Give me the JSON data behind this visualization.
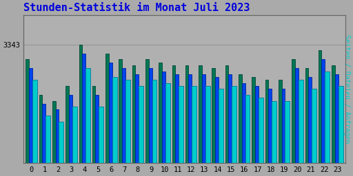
{
  "title": "Stunden-Statistik im Monat Juli 2023",
  "title_color": "#0000dd",
  "ylabel_right": "Seiten / Dateien / Anfragen",
  "ylabel_right_color": "#00cccc",
  "hours": [
    0,
    1,
    2,
    3,
    4,
    5,
    6,
    7,
    8,
    9,
    10,
    11,
    12,
    13,
    14,
    15,
    16,
    17,
    18,
    19,
    20,
    21,
    22,
    23
  ],
  "seiten_vals": [
    95,
    83,
    81,
    86,
    100,
    86,
    97,
    95,
    93,
    95,
    94,
    93,
    93,
    93,
    92,
    93,
    90,
    89,
    88,
    88,
    95,
    92,
    98,
    93
  ],
  "dateien_vals": [
    92,
    80,
    78,
    83,
    97,
    83,
    94,
    92,
    90,
    92,
    91,
    90,
    90,
    90,
    89,
    90,
    87,
    86,
    85,
    85,
    92,
    89,
    95,
    90
  ],
  "anfragen_vals": [
    88,
    76,
    74,
    79,
    92,
    79,
    89,
    88,
    86,
    88,
    87,
    86,
    86,
    86,
    85,
    86,
    83,
    82,
    81,
    81,
    88,
    85,
    91,
    86
  ],
  "color_anfragen": "#00cccc",
  "color_dateien": "#0044ee",
  "color_seiten": "#007755",
  "bar_edge_seiten": "#004433",
  "bar_edge_dateien": "#002299",
  "bar_edge_anfragen": "#007799",
  "background_color": "#aaaaaa",
  "plot_bg": "#b0b0b0",
  "ymin": 60,
  "ymax": 110,
  "ytick_val": 100,
  "ytick_label": "3343",
  "font_family": "monospace",
  "title_fontsize": 11,
  "tick_fontsize": 7.5
}
